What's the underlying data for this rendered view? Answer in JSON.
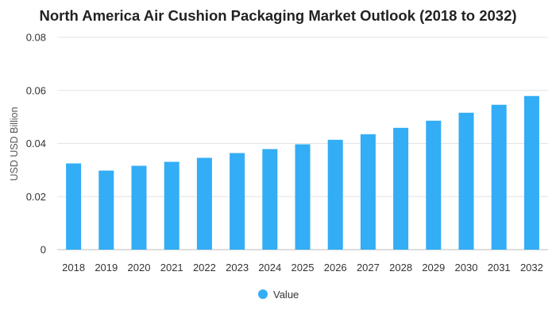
{
  "chart_data": {
    "type": "bar",
    "title": "North America Air Cushion Packaging Market Outlook (2018 to 2032)",
    "xlabel": "",
    "ylabel": "USD USD Billion",
    "categories": [
      "2018",
      "2019",
      "2020",
      "2021",
      "2022",
      "2023",
      "2024",
      "2025",
      "2026",
      "2027",
      "2028",
      "2029",
      "2030",
      "2031",
      "2032"
    ],
    "series": [
      {
        "name": "Value",
        "color": "#33adf5",
        "values": [
          0.0325,
          0.0298,
          0.0316,
          0.0331,
          0.0346,
          0.0364,
          0.0379,
          0.0397,
          0.0414,
          0.0435,
          0.0459,
          0.0486,
          0.0516,
          0.0546,
          0.0579
        ]
      }
    ],
    "ylim": [
      0,
      0.08
    ],
    "yticks": [
      0,
      0.02,
      0.04,
      0.06,
      0.08
    ],
    "ytick_labels": [
      "0",
      "0.02",
      "0.04",
      "0.06",
      "0.08"
    ],
    "grid": true,
    "legend": "bottom-center"
  }
}
